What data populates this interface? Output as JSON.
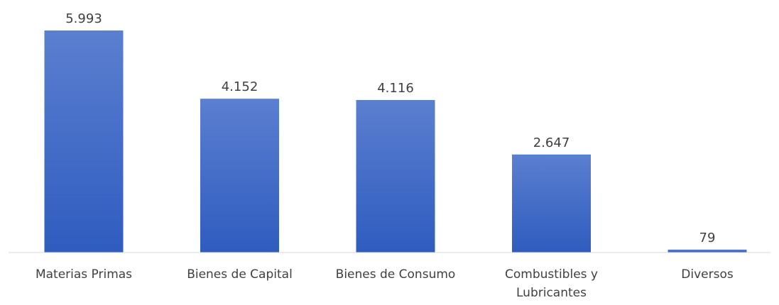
{
  "chart_data": {
    "type": "bar",
    "title": "",
    "xlabel": "",
    "ylabel": "",
    "categories": [
      [
        "Materias Primas"
      ],
      [
        "Bienes de Capital"
      ],
      [
        "Bienes de Consumo"
      ],
      [
        "Combustibles y",
        "Lubricantes"
      ],
      [
        "Diversos"
      ]
    ],
    "values": [
      5993,
      4152,
      4116,
      2647,
      79
    ],
    "data_labels": [
      "5.993",
      "4.152",
      "4.116",
      "2.647",
      "79"
    ],
    "ylim": [
      0,
      5993
    ],
    "grid": false,
    "legend": "none",
    "colors": {
      "bar_top": "#5b7fd0",
      "bar_bottom": "#2f5cbf",
      "axis": "#d9d9d9",
      "text": "#404040"
    }
  }
}
